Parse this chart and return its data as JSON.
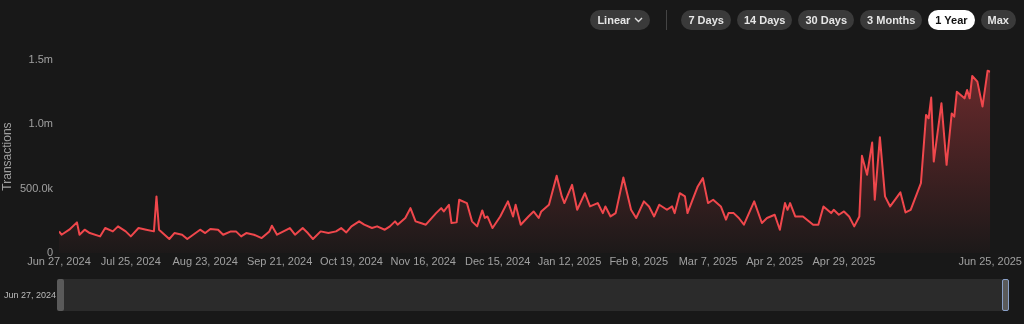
{
  "chart_data": {
    "type": "area",
    "ylabel": "Transactions",
    "annotations": [
      "Linear",
      "7 Days",
      "14 Days",
      "30 Days",
      "3 Months",
      "1 Year",
      "Max"
    ],
    "xlim": [
      "2024-06-27",
      "2025-06-25"
    ],
    "xticks": [
      {
        "value": "2024-06-27",
        "label": "Jun 27, 2024"
      },
      {
        "value": "2024-07-25",
        "label": "Jul 25, 2024"
      },
      {
        "value": "2024-08-23",
        "label": "Aug 23, 2024"
      },
      {
        "value": "2024-09-21",
        "label": "Sep 21, 2024"
      },
      {
        "value": "2024-10-19",
        "label": "Oct 19, 2024"
      },
      {
        "value": "2024-11-16",
        "label": "Nov 16, 2024"
      },
      {
        "value": "2024-12-15",
        "label": "Dec 15, 2024"
      },
      {
        "value": "2025-01-12",
        "label": "Jan 12, 2025"
      },
      {
        "value": "2025-02-08",
        "label": "Feb 8, 2025"
      },
      {
        "value": "2025-03-07",
        "label": "Mar 7, 2025"
      },
      {
        "value": "2025-04-02",
        "label": "Apr 2, 2025"
      },
      {
        "value": "2025-04-29",
        "label": "Apr 29, 2025"
      },
      {
        "value": "2025-06-25",
        "label": "Jun 25, 2025"
      }
    ],
    "ylim": [
      0,
      1500000
    ],
    "yticks": [
      0,
      {
        "value": 500000,
        "label": "500.0k"
      },
      {
        "value": 1000000,
        "label": "1.0m"
      },
      {
        "value": 1500000,
        "label": "1.5m"
      }
    ],
    "grid": false,
    "legend": false,
    "marker": "none",
    "line_style": "solid",
    "series": [
      {
        "color": "#f0474c",
        "x": [
          "2024-06-27",
          "2024-06-28",
          "2024-07-01",
          "2024-07-04",
          "2024-07-05",
          "2024-07-07",
          "2024-07-09",
          "2024-07-13",
          "2024-07-15",
          "2024-07-18",
          "2024-07-20",
          "2024-07-23",
          "2024-07-25",
          "2024-07-28",
          "2024-07-31",
          "2024-08-03",
          "2024-08-04",
          "2024-08-05",
          "2024-08-09",
          "2024-08-11",
          "2024-08-14",
          "2024-08-16",
          "2024-08-21",
          "2024-08-23",
          "2024-08-25",
          "2024-08-28",
          "2024-08-30",
          "2024-09-02",
          "2024-09-04",
          "2024-09-06",
          "2024-09-08",
          "2024-09-11",
          "2024-09-14",
          "2024-09-17",
          "2024-09-18",
          "2024-09-20",
          "2024-09-25",
          "2024-09-27",
          "2024-09-30",
          "2024-10-02",
          "2024-10-04",
          "2024-10-07",
          "2024-10-10",
          "2024-10-13",
          "2024-10-15",
          "2024-10-17",
          "2024-10-19",
          "2024-10-22",
          "2024-10-24",
          "2024-10-27",
          "2024-10-29",
          "2024-11-01",
          "2024-11-03",
          "2024-11-05",
          "2024-11-06",
          "2024-11-09",
          "2024-11-11",
          "2024-11-13",
          "2024-11-15",
          "2024-11-17",
          "2024-11-21",
          "2024-11-23",
          "2024-11-24",
          "2024-11-26",
          "2024-11-27",
          "2024-11-29",
          "2024-11-30",
          "2024-12-03",
          "2024-12-05",
          "2024-12-07",
          "2024-12-09",
          "2024-12-10",
          "2024-12-11",
          "2024-12-13",
          "2024-12-16",
          "2024-12-19",
          "2024-12-21",
          "2024-12-22",
          "2024-12-24",
          "2024-12-27",
          "2024-12-29",
          "2024-12-31",
          "2025-01-01",
          "2025-01-04",
          "2025-01-07",
          "2025-01-09",
          "2025-01-10",
          "2025-01-13",
          "2025-01-15",
          "2025-01-18",
          "2025-01-20",
          "2025-01-23",
          "2025-01-25",
          "2025-01-26",
          "2025-01-28",
          "2025-01-30",
          "2025-02-02",
          "2025-02-05",
          "2025-02-07",
          "2025-02-10",
          "2025-02-12",
          "2025-02-14",
          "2025-02-16",
          "2025-02-19",
          "2025-02-21",
          "2025-02-22",
          "2025-02-24",
          "2025-02-26",
          "2025-02-27",
          "2025-03-01",
          "2025-03-03",
          "2025-03-05",
          "2025-03-07",
          "2025-03-09",
          "2025-03-12",
          "2025-03-14",
          "2025-03-15",
          "2025-03-17",
          "2025-03-19",
          "2025-03-21",
          "2025-03-25",
          "2025-03-28",
          "2025-03-30",
          "2025-04-02",
          "2025-04-04",
          "2025-04-06",
          "2025-04-07",
          "2025-04-08",
          "2025-04-10",
          "2025-04-13",
          "2025-04-17",
          "2025-04-19",
          "2025-04-21",
          "2025-04-24",
          "2025-04-25",
          "2025-04-27",
          "2025-04-29",
          "2025-05-01",
          "2025-05-03",
          "2025-05-05",
          "2025-05-06",
          "2025-05-08",
          "2025-05-10",
          "2025-05-11",
          "2025-05-13",
          "2025-05-15",
          "2025-05-17",
          "2025-05-21",
          "2025-05-23",
          "2025-05-25",
          "2025-05-29",
          "2025-05-31",
          "2025-06-01",
          "2025-06-02",
          "2025-06-03",
          "2025-06-06",
          "2025-06-08",
          "2025-06-10",
          "2025-06-11",
          "2025-06-12",
          "2025-06-15",
          "2025-06-16",
          "2025-06-17",
          "2025-06-18",
          "2025-06-20",
          "2025-06-22",
          "2025-06-24",
          "2025-06-25"
        ],
        "values": [
          168000,
          142000,
          181000,
          238000,
          142000,
          181000,
          155000,
          129000,
          194000,
          168000,
          207000,
          168000,
          129000,
          194000,
          181000,
          168000,
          440000,
          181000,
          109000,
          155000,
          142000,
          109000,
          181000,
          155000,
          186000,
          181000,
          142000,
          168000,
          168000,
          129000,
          155000,
          142000,
          116000,
          168000,
          212000,
          142000,
          194000,
          142000,
          194000,
          155000,
          109000,
          168000,
          155000,
          168000,
          194000,
          160000,
          207000,
          246000,
          220000,
          194000,
          207000,
          181000,
          207000,
          246000,
          220000,
          272000,
          349000,
          246000,
          233000,
          220000,
          310000,
          349000,
          323000,
          375000,
          233000,
          238000,
          414000,
          388000,
          246000,
          207000,
          331000,
          272000,
          284000,
          194000,
          284000,
          401000,
          284000,
          375000,
          220000,
          284000,
          323000,
          272000,
          323000,
          375000,
          600000,
          440000,
          388000,
          530000,
          336000,
          465000,
          362000,
          388000,
          310000,
          362000,
          284000,
          310000,
          587000,
          336000,
          272000,
          401000,
          362000,
          284000,
          375000,
          336000,
          362000,
          310000,
          465000,
          440000,
          310000,
          414000,
          517000,
          582000,
          388000,
          414000,
          362000,
          259000,
          310000,
          310000,
          272000,
          220000,
          401000,
          233000,
          272000,
          297000,
          181000,
          388000,
          336000,
          388000,
          284000,
          284000,
          220000,
          220000,
          362000,
          310000,
          336000,
          297000,
          323000,
          284000,
          207000,
          284000,
          755000,
          608000,
          859000,
          414000,
          900000,
          440000,
          362000,
          471000,
          315000,
          336000,
          543000,
          1073000,
          1047000,
          1208000,
          711000,
          1164000,
          685000,
          1085000,
          1060000,
          1254000,
          1202000,
          1267000,
          1202000,
          1376000,
          1332000,
          1138000,
          1417000,
          1409000
        ]
      }
    ]
  }
}
